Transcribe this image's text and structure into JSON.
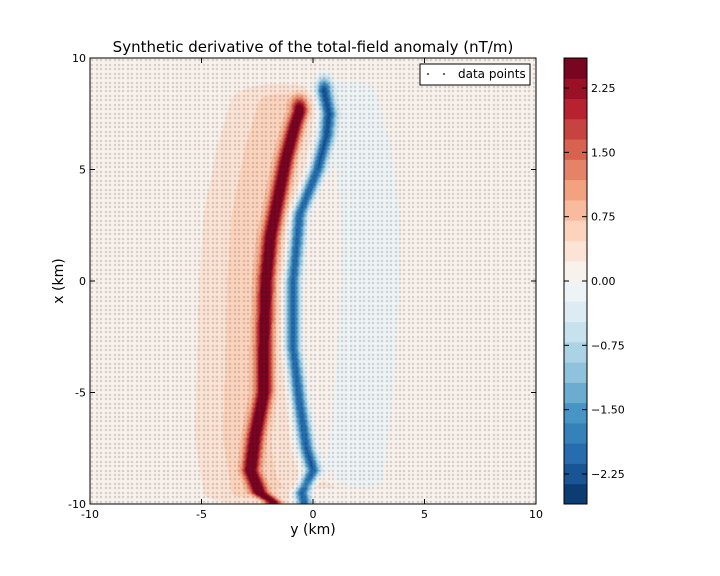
{
  "chart_data": {
    "type": "heatmap",
    "title": "Synthetic derivative of the total-field anomaly (nT/m)",
    "xlabel": "y (km)",
    "ylabel": "x (km)",
    "xlim": [
      -10,
      10
    ],
    "ylim": [
      -10,
      10
    ],
    "xticks": [
      "-10",
      "-5",
      "0",
      "5",
      "10"
    ],
    "yticks": [
      "-10",
      "-5",
      "0",
      "5",
      "10"
    ],
    "legend": {
      "label": "data points",
      "placement": "top-right"
    },
    "colorbar": {
      "vmin": -2.6,
      "vmax": 2.6,
      "ticks": [
        "2.25",
        "1.50",
        "0.75",
        "0.00",
        "−0.75",
        "−1.50",
        "−2.25"
      ],
      "tick_values": [
        2.25,
        1.5,
        0.75,
        0.0,
        -0.75,
        -1.5,
        -2.25
      ],
      "levels": 22,
      "colormap": [
        "#053061",
        "#2166ac",
        "#4393c3",
        "#92c5de",
        "#d1e5f0",
        "#f7f7f7",
        "#fddbc7",
        "#f4a582",
        "#d6604d",
        "#b2182b",
        "#67001f"
      ]
    },
    "features": [
      {
        "name": "positive-ridge",
        "peak": 2.5,
        "width_km": 0.35,
        "path": [
          [
            -9.9,
            -1.8
          ],
          [
            -9.5,
            -2.4
          ],
          [
            -8.5,
            -2.8
          ],
          [
            -7.0,
            -2.6
          ],
          [
            -5.0,
            -2.2
          ],
          [
            -3.0,
            -2.2
          ],
          [
            0.0,
            -2.1
          ],
          [
            2.0,
            -1.9
          ],
          [
            4.0,
            -1.5
          ],
          [
            5.5,
            -1.2
          ],
          [
            7.0,
            -0.8
          ],
          [
            7.6,
            -0.6
          ]
        ]
      },
      {
        "name": "negative-ridge",
        "peak": -2.3,
        "width_km": 0.33,
        "path": [
          [
            -9.9,
            -0.4
          ],
          [
            -9.5,
            -0.5
          ],
          [
            -8.5,
            0.0
          ],
          [
            -7.5,
            -0.3
          ],
          [
            -5.5,
            -0.6
          ],
          [
            -3.0,
            -0.9
          ],
          [
            0.0,
            -0.9
          ],
          [
            3.0,
            -0.6
          ],
          [
            5.0,
            0.2
          ],
          [
            6.5,
            0.6
          ],
          [
            7.5,
            0.7
          ],
          [
            8.5,
            0.5
          ]
        ]
      },
      {
        "name": "positive-halo",
        "peak": 0.45,
        "width_km": 1.6,
        "path": [
          [
            -9.5,
            -2.6
          ],
          [
            -7.0,
            -3.0
          ],
          [
            -4.0,
            -2.9
          ],
          [
            0.0,
            -2.8
          ],
          [
            3.0,
            -2.6
          ],
          [
            6.0,
            -2.0
          ],
          [
            8.0,
            -1.4
          ]
        ]
      },
      {
        "name": "negative-halo",
        "peak": -0.35,
        "width_km": 1.6,
        "path": [
          [
            -9.0,
            1.8
          ],
          [
            -6.0,
            2.2
          ],
          [
            -3.0,
            2.4
          ],
          [
            0.0,
            2.6
          ],
          [
            3.0,
            2.6
          ],
          [
            6.0,
            2.2
          ],
          [
            8.5,
            1.5
          ]
        ]
      },
      {
        "name": "background-positive",
        "peak": 0.18,
        "width_km": 20.0,
        "path": [
          [
            -10.0,
            0.0
          ],
          [
            10.0,
            0.0
          ]
        ]
      },
      {
        "name": "south-positive-patch",
        "peak": 0.35,
        "width_km": 1.2,
        "path": [
          [
            -8.0,
            0.2
          ],
          [
            -8.5,
            0.6
          ],
          [
            -9.0,
            4.0
          ],
          [
            -9.3,
            8.0
          ]
        ]
      }
    ],
    "data_grid": {
      "nx": 100,
      "ny": 100
    }
  }
}
